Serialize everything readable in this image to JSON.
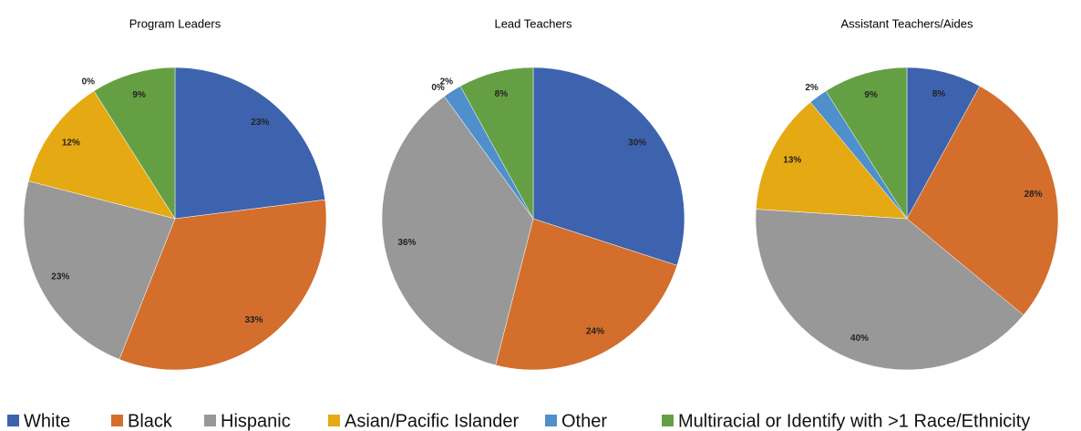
{
  "chart_data": [
    {
      "type": "pie",
      "title": "Program Leaders",
      "categories": [
        "White",
        "Black",
        "Hispanic",
        "Asian/Pacific Islander",
        "Other",
        "Multiracial or Identify with >1 Race/Ethnicity"
      ],
      "values": [
        23,
        33,
        23,
        12,
        0,
        9
      ],
      "value_labels": [
        "23%",
        "33%",
        "23%",
        "12%",
        "0%",
        "9%"
      ],
      "colors": [
        "#3d63ae",
        "#d36e2c",
        "#989898",
        "#e5a913",
        "#4e8fcc",
        "#64a043"
      ]
    },
    {
      "type": "pie",
      "title": "Lead Teachers",
      "categories": [
        "White",
        "Black",
        "Hispanic",
        "Asian/Pacific Islander",
        "Other",
        "Multiracial or Identify with >1 Race/Ethnicity"
      ],
      "values": [
        30,
        24,
        36,
        0,
        2,
        8
      ],
      "value_labels": [
        "30%",
        "24%",
        "36%",
        "0%",
        "2%",
        "8%"
      ],
      "colors": [
        "#3d63ae",
        "#d36e2c",
        "#989898",
        "#e5a913",
        "#4e8fcc",
        "#64a043"
      ]
    },
    {
      "type": "pie",
      "title": "Assistant Teachers/Aides",
      "categories": [
        "White",
        "Black",
        "Hispanic",
        "Asian/Pacific Islander",
        "Other",
        "Multiracial or Identify with >1 Race/Ethnicity"
      ],
      "values": [
        8,
        28,
        40,
        13,
        2,
        9
      ],
      "value_labels": [
        "8%",
        "28%",
        "40%",
        "13%",
        "2%",
        "9%"
      ],
      "colors": [
        "#3d63ae",
        "#d36e2c",
        "#989898",
        "#e5a913",
        "#4e8fcc",
        "#64a043"
      ]
    }
  ]
}
